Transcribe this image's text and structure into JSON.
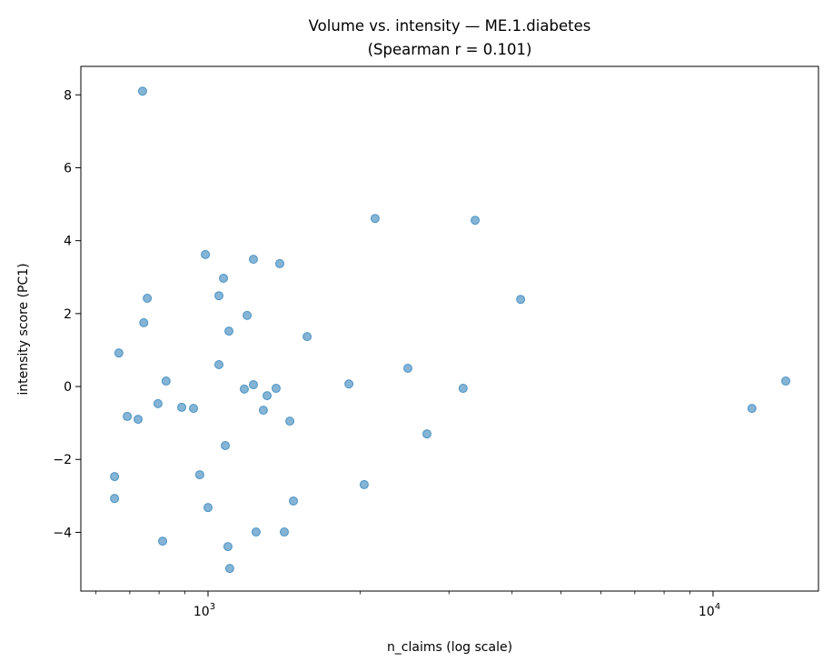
{
  "chart_data": {
    "type": "scatter",
    "title": "Volume vs. intensity — ME.1.diabetes",
    "subtitle": "(Spearman r = 0.101)",
    "xlabel": "n_claims (log scale)",
    "ylabel": "intensity score (PC1)",
    "xscale": "log",
    "xlim": [
      560,
      16170
    ],
    "ylim": [
      -5.61,
      8.78
    ],
    "grid": false,
    "x_ticks": [
      {
        "value": 1000,
        "base": "10",
        "exp": "3"
      },
      {
        "value": 10000,
        "base": "10",
        "exp": "4"
      }
    ],
    "x_minor_ticks": [
      600,
      700,
      800,
      900,
      2000,
      3000,
      4000,
      5000,
      6000,
      7000,
      8000,
      9000
    ],
    "y_ticks": [
      {
        "value": 8,
        "label": "8"
      },
      {
        "value": 6,
        "label": "6"
      },
      {
        "value": 4,
        "label": "4"
      },
      {
        "value": 2,
        "label": "2"
      },
      {
        "value": 0,
        "label": "0"
      },
      {
        "value": -2,
        "label": "−2"
      },
      {
        "value": -4,
        "label": "−4"
      }
    ],
    "marker_color": "#1f77b4",
    "points": [
      [
        742,
        8.1
      ],
      [
        2142,
        4.61
      ],
      [
        3380,
        4.56
      ],
      [
        988,
        3.62
      ],
      [
        1230,
        3.49
      ],
      [
        1387,
        3.37
      ],
      [
        1073,
        2.97
      ],
      [
        758,
        2.42
      ],
      [
        1051,
        2.49
      ],
      [
        4159,
        2.39
      ],
      [
        1195,
        1.95
      ],
      [
        746,
        1.75
      ],
      [
        1100,
        1.52
      ],
      [
        1571,
        1.37
      ],
      [
        666,
        0.92
      ],
      [
        1051,
        0.6
      ],
      [
        2487,
        0.5
      ],
      [
        826,
        0.15
      ],
      [
        13930,
        0.15
      ],
      [
        1901,
        0.07
      ],
      [
        1230,
        0.05
      ],
      [
        1180,
        -0.07
      ],
      [
        1364,
        -0.05
      ],
      [
        3200,
        -0.05
      ],
      [
        1309,
        -0.25
      ],
      [
        796,
        -0.47
      ],
      [
        887,
        -0.57
      ],
      [
        936,
        -0.6
      ],
      [
        11940,
        -0.6
      ],
      [
        1287,
        -0.65
      ],
      [
        692,
        -0.82
      ],
      [
        727,
        -0.9
      ],
      [
        1452,
        -0.95
      ],
      [
        2713,
        -1.3
      ],
      [
        1082,
        -1.62
      ],
      [
        653,
        -2.47
      ],
      [
        963,
        -2.42
      ],
      [
        2038,
        -2.69
      ],
      [
        653,
        -3.07
      ],
      [
        1476,
        -3.14
      ],
      [
        1000,
        -3.32
      ],
      [
        1245,
        -3.99
      ],
      [
        1416,
        -3.99
      ],
      [
        813,
        -4.24
      ],
      [
        1095,
        -4.39
      ],
      [
        1104,
        -4.99
      ]
    ]
  }
}
